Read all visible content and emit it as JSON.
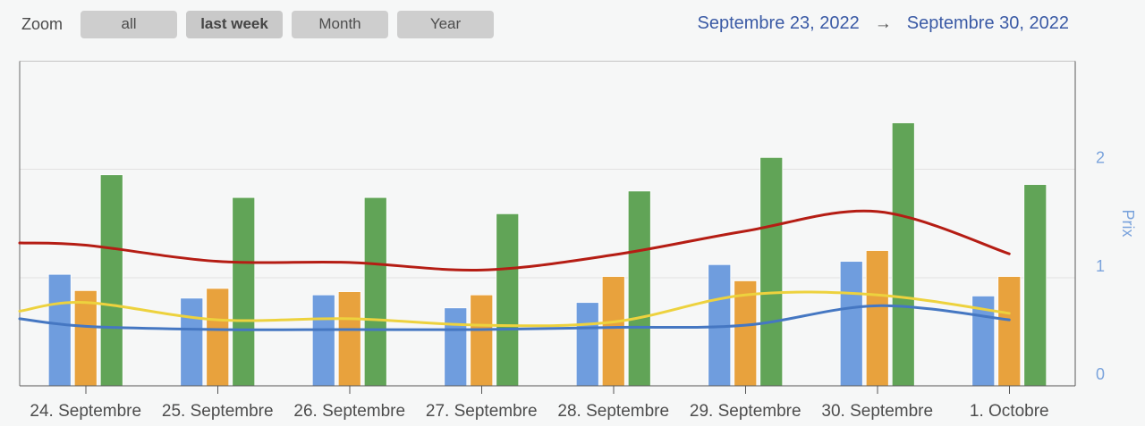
{
  "toolbar": {
    "zoom_label": "Zoom",
    "buttons": [
      {
        "label": "all",
        "selected": false
      },
      {
        "label": "last week",
        "selected": true
      },
      {
        "label": "Month",
        "selected": false
      },
      {
        "label": "Year",
        "selected": false
      }
    ]
  },
  "date_range": {
    "start": "Septembre 23, 2022",
    "arrow": "→",
    "end": "Septembre 30, 2022"
  },
  "chart_data": {
    "type": "bar+line",
    "categories": [
      "24. Septembre",
      "25. Septembre",
      "26. Septembre",
      "27. Septembre",
      "28. Septembre",
      "29. Septembre",
      "30. Septembre",
      "1. Octobre"
    ],
    "bar_series": [
      {
        "name": "blue",
        "color": "#6f9dde",
        "values": [
          1.03,
          0.81,
          0.84,
          0.72,
          0.77,
          1.12,
          1.15,
          0.83
        ]
      },
      {
        "name": "orange",
        "color": "#e8a23d",
        "values": [
          0.88,
          0.9,
          0.87,
          0.84,
          1.01,
          0.97,
          1.25,
          1.01
        ]
      },
      {
        "name": "green",
        "color": "#61a457",
        "values": [
          1.95,
          1.74,
          1.74,
          1.59,
          1.8,
          2.11,
          2.43,
          1.86
        ]
      }
    ],
    "line_series": [
      {
        "name": "red",
        "color": "#b51d14",
        "edge_value": 1.32,
        "values": [
          1.3,
          1.15,
          1.14,
          1.07,
          1.21,
          1.43,
          1.61,
          1.22
        ]
      },
      {
        "name": "yellow",
        "color": "#edd23e",
        "edge_value": 0.69,
        "values": [
          0.77,
          0.61,
          0.62,
          0.56,
          0.59,
          0.84,
          0.84,
          0.67
        ]
      },
      {
        "name": "blue",
        "color": "#4577c2",
        "edge_value": 0.62,
        "values": [
          0.55,
          0.52,
          0.52,
          0.52,
          0.54,
          0.56,
          0.74,
          0.61
        ]
      }
    ],
    "yaxis": {
      "label": "Prix",
      "ticks": [
        0,
        1,
        2
      ],
      "min": 0,
      "max": 3,
      "side": "right",
      "color": "#7aa3dc"
    },
    "xlabel": "",
    "title": "",
    "grid": "horizontal-only",
    "legend": "none"
  }
}
